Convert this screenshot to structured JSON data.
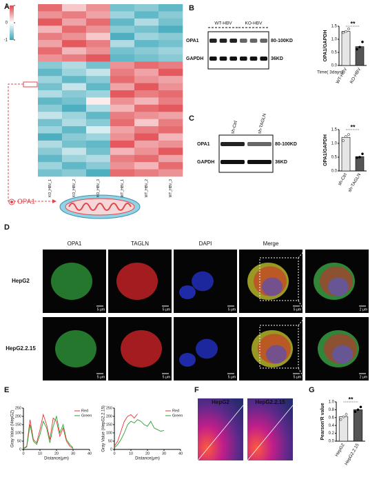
{
  "panel_a": {
    "label": "A",
    "legend_ticks": [
      1,
      0,
      -1
    ],
    "columns": [
      "KO_HBV_1",
      "KO_HBV_2",
      "KO_HBV_3",
      "WT_HBV_1",
      "WT_HBV_2",
      "WT_HBV_3"
    ],
    "heatmap": [
      [
        0.8,
        0.3,
        0.6,
        -0.7,
        -0.6,
        -0.8
      ],
      [
        0.6,
        0.7,
        0.5,
        -0.5,
        -0.8,
        -0.6
      ],
      [
        0.9,
        0.5,
        0.8,
        -0.8,
        -0.4,
        -0.7
      ],
      [
        0.4,
        0.8,
        0.6,
        -0.6,
        -0.7,
        -0.9
      ],
      [
        0.7,
        0.6,
        0.3,
        -0.9,
        -0.5,
        -0.6
      ],
      [
        0.5,
        0.9,
        0.7,
        -0.4,
        -0.8,
        -0.7
      ],
      [
        0.8,
        0.4,
        0.6,
        -0.7,
        -0.6,
        -0.5
      ],
      [
        0.6,
        0.7,
        0.9,
        -0.8,
        -0.7,
        -0.6
      ],
      [
        -0.6,
        -0.4,
        -0.7,
        0.6,
        0.8,
        0.7
      ],
      [
        -0.8,
        -0.5,
        -0.3,
        0.7,
        0.5,
        0.9
      ],
      [
        -0.5,
        -0.8,
        -0.6,
        0.8,
        0.6,
        0.5
      ],
      [
        -0.7,
        -0.3,
        -0.8,
        0.5,
        0.9,
        0.6
      ],
      [
        -0.4,
        -0.6,
        -0.5,
        0.9,
        0.7,
        0.8
      ],
      [
        -0.8,
        -0.7,
        0.1,
        0.6,
        0.4,
        0.7
      ],
      [
        -0.6,
        -0.9,
        -0.4,
        0.4,
        0.8,
        0.9
      ],
      [
        -0.3,
        -0.5,
        -0.8,
        0.7,
        0.6,
        0.5
      ],
      [
        -0.7,
        -0.4,
        -0.6,
        0.8,
        0.3,
        0.7
      ],
      [
        -0.5,
        -0.8,
        -0.2,
        0.5,
        0.7,
        0.8
      ],
      [
        -0.9,
        -0.6,
        -0.5,
        0.6,
        0.9,
        0.4
      ],
      [
        -0.4,
        -0.7,
        -0.8,
        0.9,
        0.5,
        0.6
      ],
      [
        -0.6,
        -0.3,
        -0.7,
        0.4,
        0.6,
        0.9
      ],
      [
        -0.8,
        -0.5,
        -0.4,
        0.7,
        0.8,
        0.5
      ],
      [
        -0.5,
        -0.8,
        -0.6,
        0.6,
        0.4,
        0.8
      ],
      [
        -0.7,
        -0.6,
        -0.9,
        0.8,
        0.7,
        0.6
      ]
    ],
    "callout": "OPA1"
  },
  "panel_b": {
    "label": "B",
    "groups": [
      "WT-HBV",
      "KO-HBV"
    ],
    "bands": [
      "OPA1",
      "GAPDH"
    ],
    "sizes": [
      "80-100KD",
      "36KD"
    ],
    "chart": {
      "type": "bar",
      "ylabel": "OPA1/GAPDH",
      "xlabel": "Time( 3days)",
      "categories": [
        "WT-HBV",
        "KO-HBV"
      ],
      "values": [
        1.3,
        0.72
      ],
      "points": [
        [
          1.25,
          1.3,
          1.4
        ],
        [
          0.62,
          0.7,
          0.9
        ]
      ],
      "colors": [
        "#e6e6e6",
        "#555555"
      ],
      "ylim": [
        0,
        1.5
      ],
      "yticks": [
        {
          "value": 0,
          "label": "0.0"
        },
        0.5,
        {
          "value": 1,
          "label": "1.0"
        },
        1.5
      ],
      "significance": "**"
    }
  },
  "panel_c": {
    "label": "C",
    "groups": [
      "sh-Ctrl",
      "sh-TAGLN"
    ],
    "bands": [
      "OPA1",
      "GAPDH"
    ],
    "sizes": [
      "80-100KD",
      "36KD"
    ],
    "chart": {
      "type": "bar",
      "ylabel": "OPA1/GAPDH",
      "categories": [
        "sh-Ctrl",
        "sh-TAGLN"
      ],
      "values": [
        1.22,
        0.52
      ],
      "points": [
        [
          1.1,
          1.25,
          1.32
        ],
        [
          0.48,
          0.5,
          0.62
        ]
      ],
      "colors": [
        "#e6e6e6",
        "#555555"
      ],
      "ylim": [
        0,
        1.5
      ],
      "yticks": [
        {
          "value": 0,
          "label": "0.0"
        },
        0.5,
        {
          "value": 1,
          "label": "1.0"
        },
        1.5
      ],
      "significance": "**"
    }
  },
  "panel_d": {
    "label": "D",
    "columns": [
      "OPA1",
      "TAGLN",
      "DAPI",
      "Merge"
    ],
    "rows": [
      "HepG2",
      "HepG2.2.15"
    ],
    "scale_bar": "5 μm",
    "scale_bar_zoom": "2 μm"
  },
  "panel_e": {
    "label": "E",
    "charts": [
      {
        "type": "line",
        "ylabel": "Gray Value (HepG2)",
        "xlabel": "Distance(μm)",
        "xlim": [
          0,
          40
        ],
        "xticks": [
          0,
          10,
          20,
          30,
          40
        ],
        "ylim": [
          0,
          250
        ],
        "yticks": [
          0,
          50,
          100,
          150,
          200,
          250
        ],
        "x": [
          0,
          2,
          4,
          6,
          8,
          10,
          12,
          14,
          16,
          18,
          20,
          22,
          24,
          26,
          28,
          30
        ],
        "series": [
          {
            "name": "Red",
            "color": "#e8333a",
            "values": [
              5,
              20,
              180,
              60,
              40,
              120,
              210,
              150,
              60,
              190,
              170,
              80,
              130,
              50,
              20,
              5
            ]
          },
          {
            "name": "Green",
            "color": "#2ca02c",
            "values": [
              5,
              15,
              150,
              50,
              30,
              90,
              170,
              130,
              40,
              140,
              200,
              100,
              150,
              60,
              30,
              10
            ]
          }
        ]
      },
      {
        "type": "line",
        "ylabel": "Gray Value (HepG2.2.15)",
        "xlabel": "Distance(μm)",
        "xlim": [
          0,
          40
        ],
        "xticks": [
          0,
          10,
          20,
          30,
          40
        ],
        "ylim": [
          0,
          250
        ],
        "yticks": [
          0,
          50,
          100,
          150,
          200,
          250
        ],
        "x": [
          0,
          2,
          4,
          6,
          8,
          10,
          12,
          14,
          16,
          18,
          20,
          22,
          24,
          26,
          28,
          30
        ],
        "series": [
          {
            "name": "Red",
            "color": "#e8333a",
            "values": [
              20,
              50,
              110,
              170,
              200,
              210,
              190,
              215,
              null,
              null,
              null,
              null,
              null,
              null,
              null,
              null
            ]
          },
          {
            "name": "Green",
            "color": "#2ca02c",
            "values": [
              10,
              30,
              60,
              100,
              150,
              170,
              160,
              180,
              170,
              150,
              140,
              170,
              130,
              120,
              110,
              115
            ]
          }
        ]
      }
    ]
  },
  "panel_f": {
    "label": "F",
    "images": [
      "HepG2",
      "HepG2.2.15"
    ]
  },
  "panel_g": {
    "label": "G",
    "chart": {
      "type": "bar",
      "ylabel": "Pearson'R value",
      "categories": [
        "HepG2",
        "HepG2.2.15"
      ],
      "values": [
        0.62,
        0.8
      ],
      "points": [
        [
          0.55,
          0.62,
          0.68
        ],
        [
          0.75,
          0.8,
          0.87
        ]
      ],
      "colors": [
        "#e6e6e6",
        "#555555"
      ],
      "ylim": [
        0,
        1
      ],
      "yticks": [
        {
          "value": 0,
          "label": "0.0"
        },
        0.2,
        0.4,
        0.6,
        0.8,
        {
          "value": 1,
          "label": "1.0"
        }
      ],
      "significance": "**"
    }
  }
}
